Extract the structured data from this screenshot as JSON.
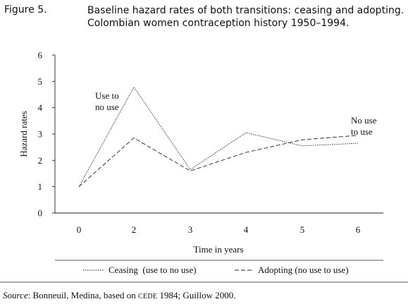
{
  "figure_label": "Figure 5.",
  "title_lines": [
    "Baseline hazard rates of both transitions: ceasing and adopting.",
    "Colombian women contraception history 1950–1994."
  ],
  "source": {
    "label": "Source",
    "text_before": ": Bonneuil, Medina, based on ",
    "smallcaps": "CEDE",
    "text_after": " 1984; Guillow 2000."
  },
  "chart_data": {
    "type": "line",
    "xlabel": "Time in years",
    "ylabel": "Hazard rates",
    "ylim": [
      0,
      6
    ],
    "yticks": [
      "0",
      "1",
      "2",
      "3",
      "4",
      "5",
      "6"
    ],
    "xticks": [
      "0",
      "2",
      "3",
      "4",
      "5",
      "6"
    ],
    "grid": false,
    "legend_position": "bottom",
    "series": [
      {
        "name": "Ceasing  (use to no use)",
        "style": "dotted",
        "values": [
          1.0,
          4.78,
          1.65,
          3.05,
          2.55,
          2.65
        ]
      },
      {
        "name": "Adopting (no use to use)",
        "style": "dashed",
        "values": [
          1.0,
          2.85,
          1.6,
          2.3,
          2.78,
          2.95
        ]
      }
    ],
    "annotations": [
      {
        "lines": [
          "Use to",
          "no use"
        ],
        "series": "Ceasing  (use to no use)"
      },
      {
        "lines": [
          "No use",
          "to use"
        ],
        "series": "Adopting (no use to use)"
      }
    ]
  }
}
